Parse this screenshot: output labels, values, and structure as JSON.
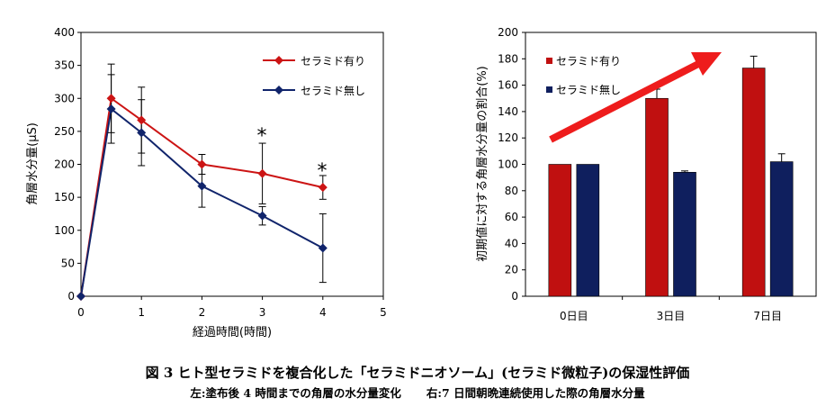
{
  "chart_data": [
    {
      "type": "line",
      "title": "",
      "xlabel": "経過時間(時間)",
      "ylabel": "角層水分量(μS)",
      "xlim": [
        0,
        5
      ],
      "ylim": [
        0,
        400
      ],
      "xticks": [
        "0",
        "1",
        "2",
        "3",
        "4",
        "5"
      ],
      "yticks": [
        "0",
        "50",
        "100",
        "150",
        "200",
        "250",
        "300",
        "350",
        "400"
      ],
      "legend_position": "top-right",
      "series": [
        {
          "name": "セラミド有り",
          "color": "#cc1414",
          "marker": "diamond",
          "x": [
            0,
            0.5,
            1,
            2,
            3,
            4
          ],
          "y": [
            0,
            300,
            267,
            200,
            186,
            165
          ],
          "err": [
            0,
            52,
            50,
            15,
            46,
            18
          ]
        },
        {
          "name": "セラミド無し",
          "color": "#10246b",
          "marker": "diamond",
          "x": [
            0,
            0.5,
            1,
            2,
            3,
            4
          ],
          "y": [
            0,
            284,
            248,
            167,
            122,
            73
          ],
          "err": [
            0,
            52,
            50,
            32,
            14,
            52
          ]
        }
      ],
      "annotations": [
        {
          "text": "*",
          "x": 3,
          "y": 232
        },
        {
          "text": "*",
          "x": 4,
          "y": 183
        }
      ]
    },
    {
      "type": "bar",
      "title": "",
      "xlabel": "",
      "ylabel": "初期値に対する角層水分量の割合(%)",
      "ylim": [
        0,
        200
      ],
      "yticks": [
        "0",
        "20",
        "40",
        "60",
        "80",
        "100",
        "120",
        "140",
        "160",
        "180",
        "200"
      ],
      "categories": [
        "0日目",
        "3日目",
        "7日目"
      ],
      "legend_position": "top-left",
      "series": [
        {
          "name": "セラミド有り",
          "color": "#c01010",
          "values": [
            100,
            150,
            173
          ],
          "err": [
            0,
            7,
            9
          ]
        },
        {
          "name": "セラミド無し",
          "color": "#0f1f5e",
          "values": [
            100,
            94,
            102
          ],
          "err": [
            0,
            1,
            6
          ]
        }
      ],
      "arrow": {
        "description": "upward trend arrow",
        "color": "#ee1c1c"
      }
    }
  ],
  "caption": {
    "title": "図 3  ヒト型セラミドを複合化した「セラミドニオソーム」(セラミド微粒子)の保湿性評価",
    "left": "左:塗布後 4 時間までの角層の水分量変化",
    "right": "右:7 日間朝晩連続使用した際の角層水分量"
  }
}
